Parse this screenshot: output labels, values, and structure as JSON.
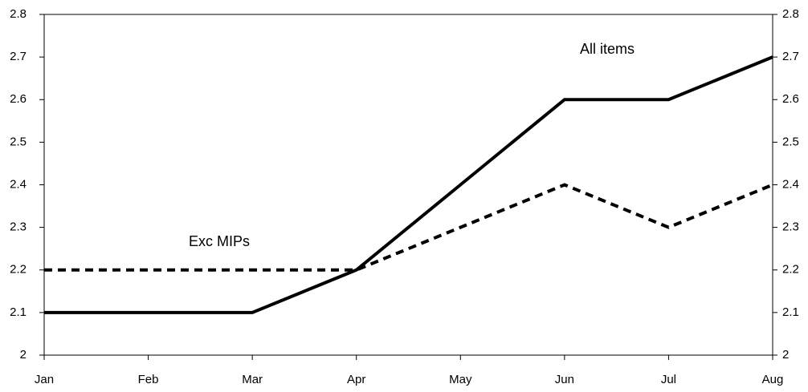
{
  "chart_data": {
    "type": "line",
    "categories": [
      "Jan",
      "Feb",
      "Mar",
      "Apr",
      "May",
      "Jun",
      "Jul",
      "Aug"
    ],
    "series": [
      {
        "name": "All items",
        "color": "#000000",
        "dashed": false,
        "values": [
          2.1,
          2.1,
          2.1,
          2.2,
          2.4,
          2.6,
          2.6,
          2.7
        ]
      },
      {
        "name": "Exc MIPs",
        "color": "#000000",
        "dashed": true,
        "values": [
          2.2,
          2.2,
          2.2,
          2.2,
          2.3,
          2.4,
          2.3,
          2.4
        ]
      }
    ],
    "ylim": [
      2,
      2.8
    ],
    "yticks": [
      2,
      2.1,
      2.2,
      2.3,
      2.4,
      2.5,
      2.6,
      2.7,
      2.8
    ],
    "y2lim": [
      2,
      2.8
    ],
    "y2ticks": [
      2,
      2.1,
      2.2,
      2.3,
      2.4,
      2.5,
      2.6,
      2.7,
      2.8
    ],
    "grid": false
  }
}
